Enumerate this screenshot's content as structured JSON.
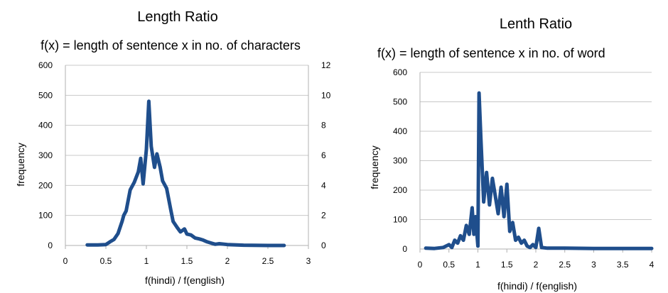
{
  "chart_data": [
    {
      "type": "line",
      "title": "Length Ratio",
      "subtitle": "f(x) = length of sentence x in no. of characters",
      "xlabel": "f(hindi) / f(english)",
      "ylabel": "frequency",
      "xlim": [
        0,
        3
      ],
      "ylim": [
        0,
        600
      ],
      "y2lim": [
        0,
        12
      ],
      "x_ticks": [
        "0",
        "0.5",
        "1",
        "1.5",
        "2",
        "2.5",
        "3"
      ],
      "y_ticks": [
        "0",
        "100",
        "200",
        "300",
        "400",
        "500",
        "600"
      ],
      "y2_ticks": [
        "0",
        "2",
        "4",
        "6",
        "8",
        "10",
        "12"
      ],
      "grid": "horizontal",
      "color": "#1f4e8c",
      "series": [
        {
          "x": [
            0.27,
            0.4,
            0.5,
            0.55,
            0.6,
            0.65,
            0.7,
            0.72,
            0.75,
            0.8,
            0.85,
            0.9,
            0.93,
            0.96,
            1.0,
            1.03,
            1.06,
            1.1,
            1.13,
            1.17,
            1.2,
            1.25,
            1.3,
            1.33,
            1.38,
            1.42,
            1.47,
            1.5,
            1.55,
            1.6,
            1.65,
            1.7,
            1.75,
            1.8,
            1.85,
            1.9,
            2.0,
            2.2,
            2.5,
            2.7
          ],
          "y": [
            2,
            2,
            3,
            12,
            20,
            40,
            80,
            100,
            115,
            185,
            210,
            245,
            290,
            205,
            320,
            480,
            330,
            260,
            305,
            260,
            215,
            190,
            120,
            80,
            60,
            45,
            55,
            38,
            35,
            25,
            22,
            18,
            12,
            8,
            4,
            6,
            3,
            1,
            0,
            0
          ]
        }
      ]
    },
    {
      "type": "line",
      "title": "Lenth Ratio",
      "subtitle": "f(x) = length of sentence x in no. of word",
      "xlabel": "f(hindi) / f(english)",
      "ylabel": "frequency",
      "xlim": [
        0,
        4
      ],
      "ylim": [
        0,
        600
      ],
      "x_ticks": [
        "0",
        "0.5",
        "1",
        "1.5",
        "2",
        "2.5",
        "3",
        "3.5",
        "4"
      ],
      "y_ticks": [
        "0",
        "100",
        "200",
        "300",
        "400",
        "500",
        "600"
      ],
      "grid": "horizontal",
      "color": "#1f4e8c",
      "series": [
        {
          "x": [
            0.1,
            0.25,
            0.4,
            0.5,
            0.55,
            0.6,
            0.65,
            0.7,
            0.75,
            0.8,
            0.85,
            0.9,
            0.93,
            0.96,
            1.0,
            1.02,
            1.05,
            1.1,
            1.15,
            1.2,
            1.25,
            1.3,
            1.35,
            1.4,
            1.45,
            1.5,
            1.55,
            1.6,
            1.65,
            1.7,
            1.75,
            1.8,
            1.85,
            1.9,
            1.95,
            2.0,
            2.05,
            2.1,
            2.2,
            2.5,
            3.0,
            3.5,
            4.0
          ],
          "y": [
            3,
            2,
            5,
            15,
            5,
            30,
            20,
            45,
            30,
            80,
            50,
            140,
            50,
            110,
            10,
            530,
            380,
            160,
            260,
            150,
            240,
            180,
            120,
            210,
            110,
            220,
            60,
            90,
            30,
            40,
            20,
            30,
            10,
            5,
            15,
            5,
            70,
            5,
            3,
            3,
            2,
            2,
            2
          ]
        }
      ]
    }
  ]
}
